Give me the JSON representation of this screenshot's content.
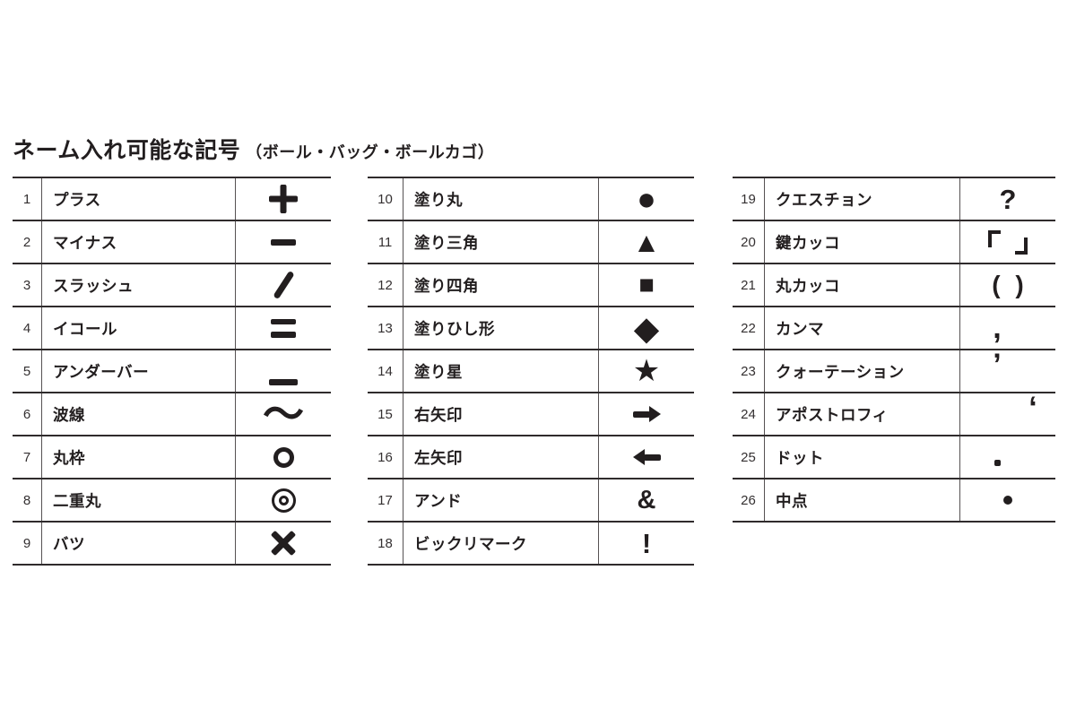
{
  "title": {
    "main": "ネーム入れ可能な記号",
    "sub": "（ボール・バッグ・ボールカゴ）"
  },
  "colors": {
    "background": "#ffffff",
    "ink": "#221e1f",
    "horizontal_rule": "#2f2b2c",
    "vertical_rule": "#565253"
  },
  "tables": [
    {
      "name": "symbols-1-9",
      "rows": [
        {
          "no": "1",
          "label": "プラス",
          "glyph": "＋",
          "shape": "plus"
        },
        {
          "no": "2",
          "label": "マイナス",
          "glyph": "−",
          "shape": "minus"
        },
        {
          "no": "3",
          "label": "スラッシュ",
          "glyph": "／",
          "shape": "slash"
        },
        {
          "no": "4",
          "label": "イコール",
          "glyph": "＝",
          "shape": "equal"
        },
        {
          "no": "5",
          "label": "アンダーバー",
          "glyph": "＿",
          "shape": "underscore"
        },
        {
          "no": "6",
          "label": "波線",
          "glyph": "〜",
          "size": 46
        },
        {
          "no": "7",
          "label": "丸枠",
          "glyph": "○",
          "shape": "ring"
        },
        {
          "no": "8",
          "label": "二重丸",
          "glyph": "◎",
          "shape": "double-ring"
        },
        {
          "no": "9",
          "label": "バツ",
          "glyph": "×",
          "shape": "cross"
        }
      ]
    },
    {
      "name": "symbols-10-18",
      "rows": [
        {
          "no": "10",
          "label": "塗り丸",
          "glyph": "●",
          "size": 36
        },
        {
          "no": "11",
          "label": "塗り三角",
          "glyph": "▲",
          "size": 31
        },
        {
          "no": "12",
          "label": "塗り四角",
          "glyph": "■",
          "size": 29
        },
        {
          "no": "13",
          "label": "塗りひし形",
          "glyph": "◆",
          "size": 37
        },
        {
          "no": "14",
          "label": "塗り星",
          "glyph": "★",
          "size": 34
        },
        {
          "no": "15",
          "label": "右矢印",
          "glyph": "→",
          "shape": "arrow-right"
        },
        {
          "no": "16",
          "label": "左矢印",
          "glyph": "←",
          "shape": "arrow-left"
        },
        {
          "no": "17",
          "label": "アンド",
          "glyph": "&",
          "size": 29
        },
        {
          "no": "18",
          "label": "ビックリマーク",
          "glyph": "!",
          "size": 31
        }
      ]
    },
    {
      "name": "symbols-19-26",
      "rows": [
        {
          "no": "19",
          "label": "クエスチョン",
          "glyph": "?",
          "size": 31
        },
        {
          "no": "20",
          "label": "鍵カッコ",
          "glyph": "「 」",
          "shape": "corner-brackets"
        },
        {
          "no": "21",
          "label": "丸カッコ",
          "glyph": "( )",
          "size": 28,
          "cls": "parens"
        },
        {
          "no": "22",
          "label": "カンマ",
          "glyph": ",",
          "size": 34,
          "cls": "shift-left"
        },
        {
          "no": "23",
          "label": "クォーテーション",
          "glyph": "’",
          "size": 34,
          "cls": "pos-top shift-left"
        },
        {
          "no": "24",
          "label": "アポストロフィ",
          "glyph": "‘",
          "size": 34,
          "cls": "pos-top shift-right"
        },
        {
          "no": "25",
          "label": "ドット",
          "glyph": ".",
          "shape": "small-dot",
          "cls": "shift-left"
        },
        {
          "no": "26",
          "label": "中点",
          "glyph": "・",
          "shape": "middle-dot"
        }
      ]
    }
  ]
}
